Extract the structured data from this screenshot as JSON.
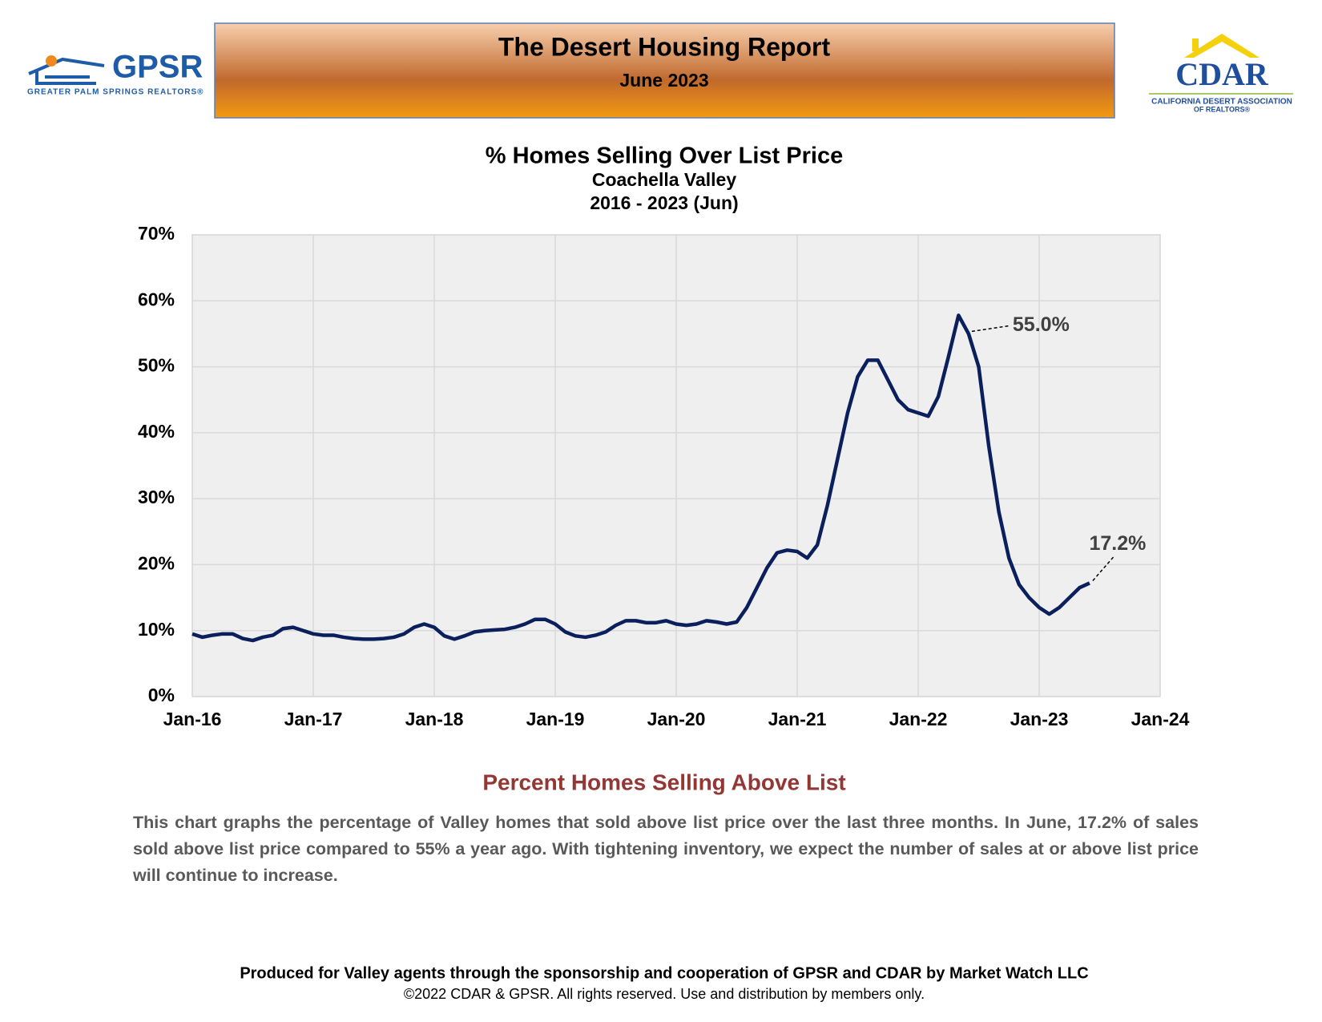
{
  "header": {
    "title": "The Desert Housing Report",
    "subtitle": "June 2023"
  },
  "logos": {
    "left": {
      "name": "GPSR",
      "tagline": "GREATER PALM SPRINGS REALTORS®"
    },
    "right": {
      "name": "CDAR",
      "tagline": [
        "CALIFORNIA DESERT ASSOCIATION",
        "OF REALTORS®"
      ]
    }
  },
  "chart_data": {
    "type": "line",
    "title": "% Homes Selling Over List Price",
    "subtitle": [
      "Coachella Valley",
      "2016 - 2023 (Jun)"
    ],
    "x": [
      "Jan-16",
      "Feb-16",
      "Mar-16",
      "Apr-16",
      "May-16",
      "Jun-16",
      "Jul-16",
      "Aug-16",
      "Sep-16",
      "Oct-16",
      "Nov-16",
      "Dec-16",
      "Jan-17",
      "Feb-17",
      "Mar-17",
      "Apr-17",
      "May-17",
      "Jun-17",
      "Jul-17",
      "Aug-17",
      "Sep-17",
      "Oct-17",
      "Nov-17",
      "Dec-17",
      "Jan-18",
      "Feb-18",
      "Mar-18",
      "Apr-18",
      "May-18",
      "Jun-18",
      "Jul-18",
      "Aug-18",
      "Sep-18",
      "Oct-18",
      "Nov-18",
      "Dec-18",
      "Jan-19",
      "Feb-19",
      "Mar-19",
      "Apr-19",
      "May-19",
      "Jun-19",
      "Jul-19",
      "Aug-19",
      "Sep-19",
      "Oct-19",
      "Nov-19",
      "Dec-19",
      "Jan-20",
      "Feb-20",
      "Mar-20",
      "Apr-20",
      "May-20",
      "Jun-20",
      "Jul-20",
      "Aug-20",
      "Sep-20",
      "Oct-20",
      "Nov-20",
      "Dec-20",
      "Jan-21",
      "Feb-21",
      "Mar-21",
      "Apr-21",
      "May-21",
      "Jun-21",
      "Jul-21",
      "Aug-21",
      "Sep-21",
      "Oct-21",
      "Nov-21",
      "Dec-21",
      "Jan-22",
      "Feb-22",
      "Mar-22",
      "Apr-22",
      "May-22",
      "Jun-22",
      "Jul-22",
      "Aug-22",
      "Sep-22",
      "Oct-22",
      "Nov-22",
      "Dec-22",
      "Jan-23",
      "Feb-23",
      "Mar-23",
      "Apr-23",
      "May-23",
      "Jun-23"
    ],
    "series": [
      {
        "color": "#0b1f5c",
        "values": [
          9.5,
          9,
          9.3,
          9.5,
          9.5,
          8.8,
          8.5,
          9,
          9.3,
          10.3,
          10.5,
          10,
          9.5,
          9.3,
          9.3,
          9,
          8.8,
          8.7,
          8.7,
          8.8,
          9,
          9.5,
          10.5,
          11,
          10.5,
          9.2,
          8.7,
          9.2,
          9.8,
          10,
          10.1,
          10.2,
          10.5,
          11,
          11.7,
          11.7,
          11,
          9.8,
          9.2,
          9,
          9.3,
          9.8,
          10.8,
          11.5,
          11.5,
          11.2,
          11.2,
          11.5,
          11,
          10.8,
          11,
          11.5,
          11.3,
          11,
          11.3,
          13.5,
          16.5,
          19.5,
          21.8,
          22.2,
          22,
          21,
          23,
          29,
          36,
          43,
          48.5,
          51,
          51,
          48,
          45,
          43.5,
          43,
          42.5,
          45.5,
          51.5,
          57.8,
          55.0,
          50,
          38,
          28,
          21,
          17,
          15,
          13.5,
          12.5,
          13.5,
          15,
          16.5,
          17.2
        ],
        "value_labels": [
          null,
          null,
          null,
          null,
          null,
          null,
          null,
          null,
          null,
          null,
          null,
          null,
          null,
          null,
          null,
          null,
          null,
          null,
          null,
          null,
          null,
          null,
          null,
          null,
          null,
          null,
          null,
          null,
          null,
          null,
          null,
          null,
          null,
          null,
          null,
          null,
          null,
          null,
          null,
          null,
          null,
          null,
          null,
          null,
          null,
          null,
          null,
          null,
          null,
          null,
          null,
          null,
          null,
          null,
          null,
          null,
          null,
          null,
          null,
          null,
          null,
          null,
          null,
          null,
          null,
          null,
          null,
          null,
          null,
          null,
          null,
          null,
          null,
          null,
          null,
          null,
          null,
          "55.0%",
          null,
          null,
          null,
          null,
          null,
          null,
          null,
          null,
          null,
          null,
          null,
          "17.2%"
        ]
      }
    ],
    "xlim": [
      "Jan-16",
      "Jan-24"
    ],
    "xticks": [
      "Jan-16",
      "Jan-17",
      "Jan-18",
      "Jan-19",
      "Jan-20",
      "Jan-21",
      "Jan-22",
      "Jan-23",
      "Jan-24"
    ],
    "ylim": [
      0,
      70
    ],
    "yticks": [
      {
        "value": 0,
        "label": "0%"
      },
      {
        "value": 10,
        "label": "10%"
      },
      {
        "value": 20,
        "label": "20%"
      },
      {
        "value": 30,
        "label": "30%"
      },
      {
        "value": 40,
        "label": "40%"
      },
      {
        "value": 50,
        "label": "50%"
      },
      {
        "value": 60,
        "label": "60%"
      },
      {
        "value": 70,
        "label": "70%"
      }
    ],
    "grid": true
  },
  "section": {
    "heading": "Percent Homes Selling Above List",
    "body": "This chart graphs the percentage of Valley homes that sold above list price over the last three months. In June, 17.2% of sales sold above list price compared to 55% a year ago. With tightening inventory, we expect the number of sales at or above list price will continue to increase."
  },
  "footer": {
    "line1": "Produced for Valley agents through the sponsorship and cooperation of GPSR and CDAR by Market Watch LLC",
    "line2": "©2022 CDAR & GPSR.  All rights reserved.  Use and distribution by members only."
  }
}
